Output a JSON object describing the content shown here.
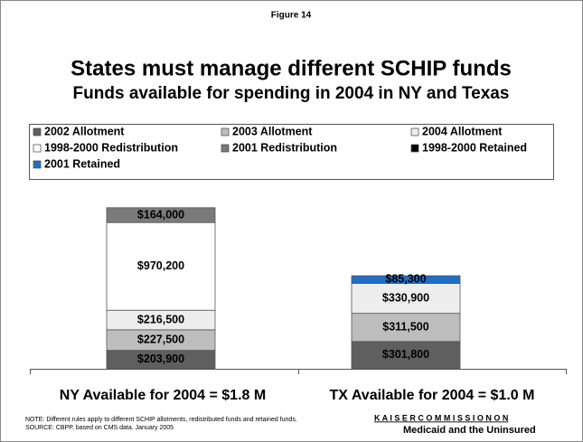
{
  "chart_data": {
    "type": "stacked_bar",
    "figure_label": "Figure 14",
    "title": "States must manage different SCHIP funds",
    "subtitle": "Funds available for spending in 2004 in NY and Texas",
    "categories": [
      "NY Available for 2004 = $1.8 M",
      "TX Available for 2004 = $1.0 M"
    ],
    "series": [
      {
        "name": "2002 Allotment",
        "color": "#5f5f5f",
        "values": [
          203900,
          301800
        ],
        "value_labels": [
          "$203,900",
          "$301,800"
        ]
      },
      {
        "name": "2003 Allotment",
        "color": "#bdbdbd",
        "values": [
          227500,
          311500
        ],
        "value_labels": [
          "$227,500",
          "$311,500"
        ]
      },
      {
        "name": "2004 Allotment",
        "color": "#ededed",
        "values": [
          216500,
          330900
        ],
        "value_labels": [
          "$216,500",
          "$330,900"
        ]
      },
      {
        "name": "1998-2000 Redistribution",
        "color": "#ffffff",
        "values": [
          970200,
          null
        ],
        "value_labels": [
          "$970,200",
          null
        ]
      },
      {
        "name": "2001 Redistribution",
        "color": "#7a7a7a",
        "values": [
          164000,
          null
        ],
        "value_labels": [
          "$164,000",
          null
        ]
      },
      {
        "name": "1998-2000 Retained",
        "color": "#000000",
        "values": [
          null,
          null
        ],
        "value_labels": [
          null,
          null
        ]
      },
      {
        "name": "2001 Retained",
        "color": "#1f6fc8",
        "values": [
          null,
          85300
        ],
        "value_labels": [
          null,
          "$85,300"
        ]
      }
    ],
    "ylim": [
      0,
      1800000
    ],
    "notes": [
      "NOTE:  Different rules apply to different SCHIP allotments, redistributed funds and retained funds.",
      "SOURCE:  CBPP, based on CMS data.  January 2005"
    ],
    "logo": [
      "K A I S E R   C O M M I S S I O N   O N",
      "Medicaid and the Uninsured"
    ]
  }
}
